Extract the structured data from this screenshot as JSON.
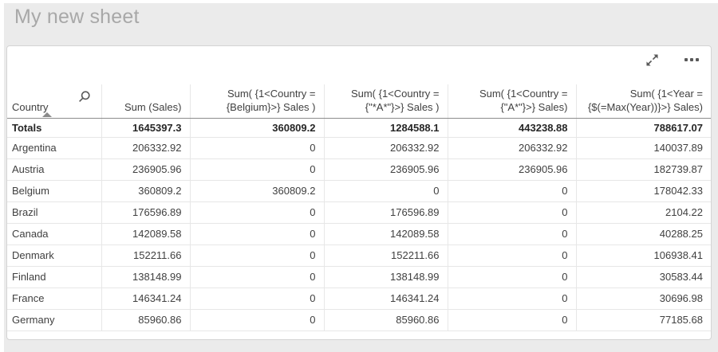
{
  "page": {
    "title": "My new sheet"
  },
  "colors": {
    "page_bg": "#ebebeb",
    "card_bg": "#ffffff",
    "title_text": "#a8a8a8",
    "text": "#404040",
    "totals_text": "#262626",
    "border_light": "#e7e7e7",
    "border_dark": "#8c8c8c",
    "icon": "#595959"
  },
  "object_toolbar": {
    "icons": [
      "fullscreen-expand",
      "more-options-ellipsis"
    ]
  },
  "table": {
    "columns": [
      {
        "key": "country",
        "label": "Country",
        "align": "left",
        "searchable": true,
        "sort": "asc"
      },
      {
        "key": "sum-sales",
        "label": "Sum (Sales)",
        "align": "right"
      },
      {
        "key": "sum-belgium",
        "label": "Sum( {1<Country = {Belgium}>} Sales )",
        "align": "right"
      },
      {
        "key": "sum-star-a-star",
        "label": "Sum( {1<Country = {\"*A*\"}>} Sales )",
        "align": "right"
      },
      {
        "key": "sum-a-star",
        "label": "Sum( {1<Country = {\"A*\"}>} Sales)",
        "align": "right"
      },
      {
        "key": "sum-max-year",
        "label": "Sum( {1<Year = {$(=Max(Year))}>} Sales)",
        "align": "right"
      }
    ],
    "totals": {
      "label": "Totals",
      "values": [
        "1645397.3",
        "360809.2",
        "1284588.1",
        "443238.88",
        "788617.07"
      ]
    },
    "rows": [
      {
        "country": "Argentina",
        "values": [
          "206332.92",
          "0",
          "206332.92",
          "206332.92",
          "140037.89"
        ]
      },
      {
        "country": "Austria",
        "values": [
          "236905.96",
          "0",
          "236905.96",
          "236905.96",
          "182739.87"
        ]
      },
      {
        "country": "Belgium",
        "values": [
          "360809.2",
          "360809.2",
          "0",
          "0",
          "178042.33"
        ]
      },
      {
        "country": "Brazil",
        "values": [
          "176596.89",
          "0",
          "176596.89",
          "0",
          "2104.22"
        ]
      },
      {
        "country": "Canada",
        "values": [
          "142089.58",
          "0",
          "142089.58",
          "0",
          "40288.25"
        ]
      },
      {
        "country": "Denmark",
        "values": [
          "152211.66",
          "0",
          "152211.66",
          "0",
          "106938.41"
        ]
      },
      {
        "country": "Finland",
        "values": [
          "138148.99",
          "0",
          "138148.99",
          "0",
          "30583.44"
        ]
      },
      {
        "country": "France",
        "values": [
          "146341.24",
          "0",
          "146341.24",
          "0",
          "30696.98"
        ]
      },
      {
        "country": "Germany",
        "values": [
          "85960.86",
          "0",
          "85960.86",
          "0",
          "77185.68"
        ]
      }
    ]
  }
}
